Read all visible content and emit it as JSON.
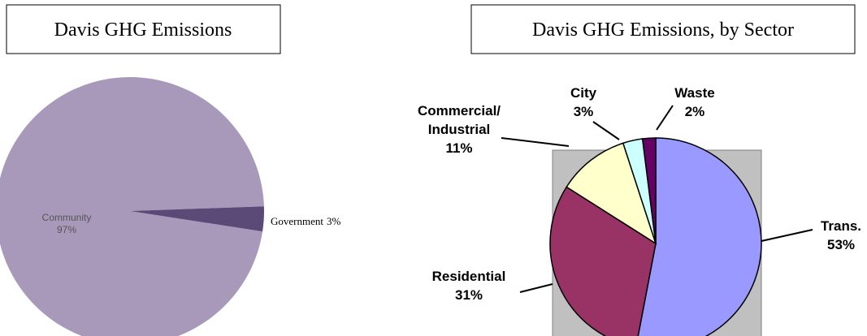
{
  "chart_data": [
    {
      "type": "pie",
      "title": "Davis GHG Emissions",
      "categories": [
        "Community",
        "Government"
      ],
      "values": [
        97,
        3
      ],
      "value_labels": [
        "97%",
        "3%"
      ],
      "colors": [
        "#a899bb",
        "#5b4a78"
      ]
    },
    {
      "type": "pie",
      "title": "Davis GHG Emissions, by Sector",
      "categories": [
        "Trans.",
        "Residential",
        "Commercial/Industrial",
        "City",
        "Waste"
      ],
      "values": [
        53,
        31,
        11,
        3,
        2
      ],
      "value_labels": [
        "53%",
        "31%",
        "11%",
        "3%",
        "2%"
      ],
      "colors": [
        "#9999ff",
        "#993366",
        "#ffffcc",
        "#ccffff",
        "#660066"
      ]
    }
  ]
}
